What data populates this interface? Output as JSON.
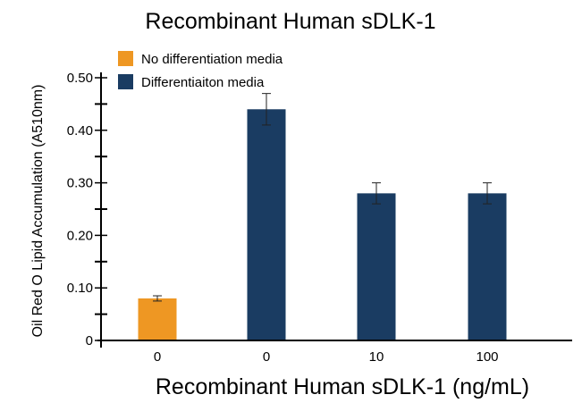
{
  "chart_data": {
    "type": "bar",
    "title": "Recombinant Human sDLK-1",
    "xlabel": "Recombinant Human sDLK-1 (ng/mL)",
    "ylabel": "Oil Red O Lipid Accumulation (A510nm)",
    "categories": [
      "0",
      "0",
      "10",
      "100"
    ],
    "values": [
      0.08,
      0.44,
      0.28,
      0.28
    ],
    "errors": [
      0.005,
      0.03,
      0.02,
      0.02
    ],
    "bar_series": [
      "No differentiation media",
      "Differentiaiton media",
      "Differentiaiton media",
      "Differentiaiton media"
    ],
    "legend": [
      {
        "name": "No differentiation media",
        "color": "#EE9723"
      },
      {
        "name": "Differentiaiton media",
        "color": "#1A3C62"
      }
    ],
    "legend_position": "top-left",
    "ylim": [
      0,
      0.5
    ],
    "yticks": [
      "0",
      "0.10",
      "0.20",
      "0.30",
      "0.40",
      "0.50"
    ],
    "ytick_values": [
      0,
      0.1,
      0.2,
      0.3,
      0.4,
      0.5
    ],
    "grid": false
  }
}
